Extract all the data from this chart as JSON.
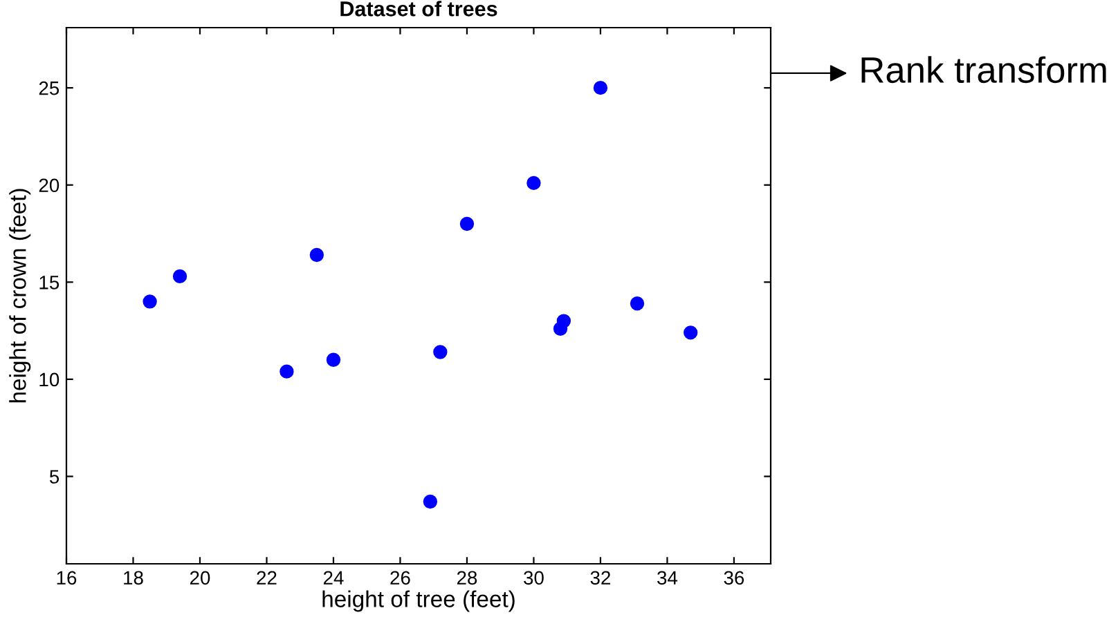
{
  "chart_data": {
    "type": "scatter",
    "title": "Dataset of trees",
    "xlabel": "height of tree (feet)",
    "ylabel": "height of crown (feet)",
    "x": [
      18.5,
      19.4,
      22.6,
      23.5,
      24.0,
      26.9,
      27.2,
      28.0,
      30.0,
      30.8,
      30.9,
      32.0,
      33.1,
      34.7
    ],
    "series": [
      {
        "color": "#0000ff",
        "values": [
          14.0,
          15.3,
          10.4,
          16.4,
          11.0,
          3.7,
          11.4,
          18.0,
          20.1,
          12.6,
          13.0,
          25.0,
          13.9,
          12.4
        ]
      }
    ],
    "xlim": [
      16,
      37.1
    ],
    "ylim": [
      0.5,
      28.1
    ],
    "xticks": [
      16,
      18,
      20,
      22,
      24,
      26,
      28,
      30,
      32,
      34,
      36
    ],
    "yticks": [
      5,
      10,
      15,
      20,
      25
    ],
    "marker": "circle",
    "grid": false,
    "legend": false,
    "annotations": [
      "Rank transform"
    ]
  }
}
